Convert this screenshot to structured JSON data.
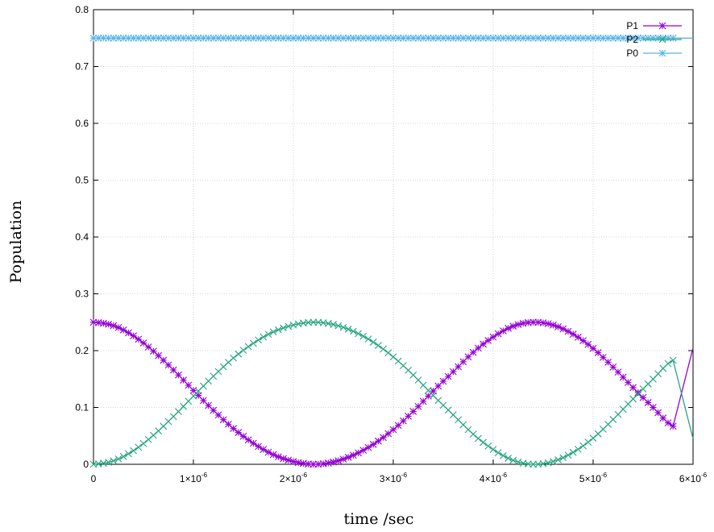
{
  "chart_data": {
    "type": "line",
    "title": "",
    "xlabel": "time /sec",
    "ylabel": "Population",
    "xlim": [
      0,
      6e-06
    ],
    "ylim": [
      0,
      0.8
    ],
    "grid": true,
    "legend_position": "top-right",
    "x_ticks": [
      {
        "value": 0,
        "label": "0",
        "mantissa": "",
        "exponent": ""
      },
      {
        "value": 1e-06,
        "label": "",
        "mantissa": "1×10",
        "exponent": "-6"
      },
      {
        "value": 2e-06,
        "label": "",
        "mantissa": "2×10",
        "exponent": "-6"
      },
      {
        "value": 3e-06,
        "label": "",
        "mantissa": "3×10",
        "exponent": "-6"
      },
      {
        "value": 4e-06,
        "label": "",
        "mantissa": "4×10",
        "exponent": "-6"
      },
      {
        "value": 5e-06,
        "label": "",
        "mantissa": "5×10",
        "exponent": "-6"
      },
      {
        "value": 6e-06,
        "label": "",
        "mantissa": "6×10",
        "exponent": "-6"
      }
    ],
    "y_ticks": [
      {
        "value": 0,
        "label": "0"
      },
      {
        "value": 0.1,
        "label": "0.1"
      },
      {
        "value": 0.2,
        "label": "0.2"
      },
      {
        "value": 0.3,
        "label": "0.3"
      },
      {
        "value": 0.4,
        "label": "0.4"
      },
      {
        "value": 0.5,
        "label": "0.5"
      },
      {
        "value": 0.6,
        "label": "0.6"
      },
      {
        "value": 0.7,
        "label": "0.7"
      },
      {
        "value": 0.8,
        "label": "0.8"
      }
    ],
    "x": [
      0,
      2e-07,
      4e-07,
      6e-07,
      8e-07,
      1e-06,
      1.2e-06,
      1.4e-06,
      1.6e-06,
      1.8e-06,
      2e-06,
      2.2e-06,
      2.4e-06,
      2.6e-06,
      2.8e-06,
      3e-06,
      3.2e-06,
      3.4e-06,
      3.6e-06,
      3.8e-06,
      4e-06,
      4.2e-06,
      4.4e-06,
      4.6e-06,
      4.8e-06,
      5e-06,
      5.2e-06,
      5.4e-06,
      5.6e-06,
      5.8e-06,
      6e-06
    ],
    "series": [
      {
        "name": "P1",
        "color": "#9400d3",
        "marker": "plus-star",
        "values": [
          0.25,
          0.244,
          0.226,
          0.199,
          0.166,
          0.13,
          0.095,
          0.063,
          0.037,
          0.017,
          0.005,
          0.0,
          0.004,
          0.016,
          0.035,
          0.061,
          0.093,
          0.129,
          0.163,
          0.197,
          0.224,
          0.243,
          0.25,
          0.245,
          0.229,
          0.204,
          0.171,
          0.135,
          0.1,
          0.067,
          0.205
        ]
      },
      {
        "name": "P2",
        "color": "#26a57e",
        "marker": "cross",
        "values": [
          0.0,
          0.006,
          0.024,
          0.051,
          0.084,
          0.12,
          0.155,
          0.187,
          0.213,
          0.233,
          0.245,
          0.25,
          0.246,
          0.234,
          0.215,
          0.189,
          0.157,
          0.121,
          0.087,
          0.053,
          0.026,
          0.007,
          0.0,
          0.005,
          0.021,
          0.046,
          0.079,
          0.115,
          0.15,
          0.183,
          0.045
        ]
      },
      {
        "name": "P0",
        "color": "#56b4e9",
        "marker": "star",
        "values": [
          0.75,
          0.75,
          0.75,
          0.75,
          0.75,
          0.75,
          0.75,
          0.75,
          0.75,
          0.75,
          0.75,
          0.75,
          0.75,
          0.75,
          0.75,
          0.75,
          0.75,
          0.75,
          0.75,
          0.75,
          0.75,
          0.75,
          0.75,
          0.75,
          0.75,
          0.75,
          0.75,
          0.75,
          0.75,
          0.75,
          0.75
        ]
      }
    ]
  }
}
